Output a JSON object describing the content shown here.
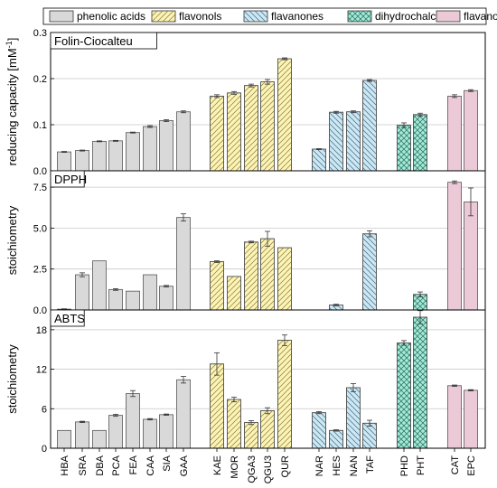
{
  "chart_data": {
    "type": "bar",
    "categories": [
      "HBA",
      "SRA",
      "DBA",
      "PCA",
      "FEA",
      "CAA",
      "SIA",
      "GAA",
      "KAE",
      "MOR",
      "QGA3",
      "QGU3",
      "QUR",
      "NAR",
      "HES",
      "NAN",
      "TAF",
      "PHD",
      "PHT",
      "CAT",
      "EPC"
    ],
    "legend": [
      {
        "name": "phenolic acids",
        "color": "#d9d9d9",
        "pattern": "none"
      },
      {
        "name": "flavonols",
        "color": "#fbf3b8",
        "pattern": "diag-right"
      },
      {
        "name": "flavanones",
        "color": "#cde7f3",
        "pattern": "diag-left"
      },
      {
        "name": "dihydrochalcones",
        "color": "#a8e8d8",
        "pattern": "cross"
      },
      {
        "name": "flavanols",
        "color": "#ecc9d6",
        "pattern": "none"
      }
    ],
    "category_groups": [
      "phenolic acids",
      "phenolic acids",
      "phenolic acids",
      "phenolic acids",
      "phenolic acids",
      "phenolic acids",
      "phenolic acids",
      "phenolic acids",
      "flavonols",
      "flavonols",
      "flavonols",
      "flavonols",
      "flavonols",
      "flavanones",
      "flavanones",
      "flavanones",
      "flavanones",
      "dihydrochalcones",
      "dihydrochalcones",
      "flavanols",
      "flavanols"
    ],
    "panels": [
      {
        "title": "Folin-Ciocalteu",
        "ylabel": "reducing capacity [mM",
        "ylabel_sup": "-1",
        "ylabel_close": "]",
        "ylim": [
          0,
          0.3
        ],
        "yticks": [
          0.0,
          0.1,
          0.2,
          0.3
        ],
        "ytick_labels": [
          "0.0",
          "0.1",
          "0.2",
          "0.3"
        ],
        "values": [
          0.041,
          0.044,
          0.064,
          0.065,
          0.083,
          0.096,
          0.109,
          0.128,
          0.162,
          0.169,
          0.185,
          0.193,
          0.243,
          0.047,
          0.127,
          0.128,
          0.196,
          0.099,
          0.122,
          0.162,
          0.174
        ],
        "errors": [
          0.001,
          0.001,
          0.001,
          0.001,
          0.001,
          0.002,
          0.002,
          0.002,
          0.003,
          0.003,
          0.003,
          0.005,
          0.002,
          0.001,
          0.002,
          0.002,
          0.002,
          0.005,
          0.003,
          0.003,
          0.002
        ]
      },
      {
        "title": "DPPH",
        "ylabel": "stoichiometry",
        "ylim": [
          0,
          8.5
        ],
        "yticks": [
          0.0,
          2.5,
          5.0,
          7.5
        ],
        "ytick_labels": [
          "0.0",
          "2.5",
          "5.0",
          "7.5"
        ],
        "values": [
          0.05,
          2.15,
          3.0,
          1.25,
          1.15,
          2.15,
          1.45,
          5.65,
          2.95,
          2.05,
          4.15,
          4.35,
          3.8,
          0,
          0.3,
          0,
          4.65,
          0,
          0.95,
          7.8,
          6.6
        ],
        "errors": [
          0.02,
          0.12,
          0.0,
          0.05,
          0.0,
          0.0,
          0.05,
          0.22,
          0.05,
          0.0,
          0.05,
          0.45,
          0.0,
          0,
          0.05,
          0,
          0.18,
          0,
          0.15,
          0.08,
          0.85
        ]
      },
      {
        "title": "ABTS",
        "ylabel": "stoichiometry",
        "ylim": [
          0,
          21
        ],
        "yticks": [
          0,
          6,
          12,
          18
        ],
        "ytick_labels": [
          "0",
          "6",
          "12",
          "18"
        ],
        "values": [
          2.7,
          4.0,
          2.7,
          5.0,
          8.3,
          4.4,
          5.1,
          10.4,
          12.8,
          7.4,
          3.9,
          5.7,
          16.4,
          5.4,
          2.7,
          9.2,
          3.8,
          16.0,
          19.9,
          9.5,
          8.8
        ],
        "errors": [
          0.0,
          0.1,
          0.0,
          0.15,
          0.45,
          0.1,
          0.1,
          0.5,
          1.7,
          0.35,
          0.3,
          0.45,
          0.8,
          0.15,
          0.1,
          0.6,
          0.45,
          0.35,
          1.0,
          0.1,
          0.1
        ]
      }
    ],
    "grid": true,
    "legend_position": "top"
  }
}
